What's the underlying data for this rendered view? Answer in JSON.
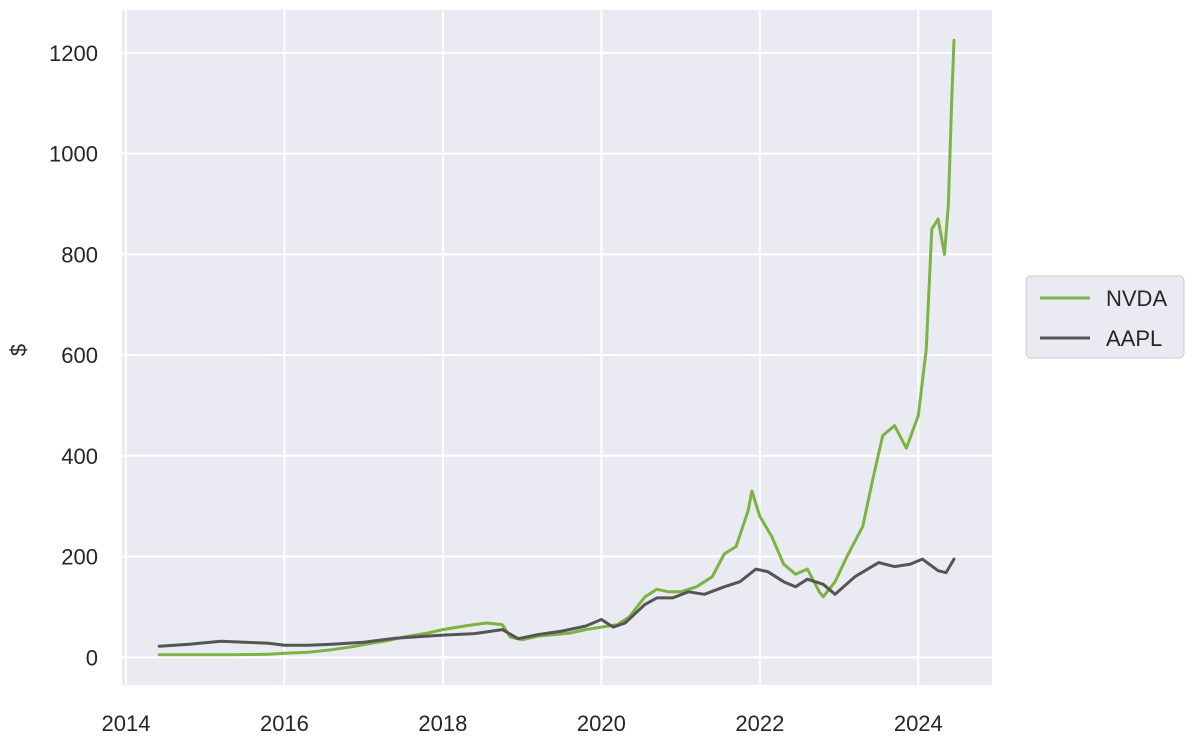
{
  "chart_data": {
    "type": "line",
    "ylabel": "$",
    "xlim": [
      2013.95,
      2024.93
    ],
    "ylim": [
      -55,
      1285
    ],
    "x_ticks": [
      "2014",
      "2016",
      "2018",
      "2020",
      "2022",
      "2024"
    ],
    "y_ticks": [
      "0",
      "200",
      "400",
      "600",
      "800",
      "1000",
      "1200"
    ],
    "grid": true,
    "legend_position": "right",
    "series": [
      {
        "name": "NVDA",
        "color": "#7cb342",
        "x": [
          2014.42,
          2014.8,
          2015.3,
          2015.8,
          2016.0,
          2016.3,
          2016.6,
          2016.9,
          2017.1,
          2017.3,
          2017.5,
          2017.8,
          2018.0,
          2018.3,
          2018.55,
          2018.75,
          2018.85,
          2019.0,
          2019.2,
          2019.4,
          2019.6,
          2019.8,
          2020.0,
          2020.2,
          2020.35,
          2020.55,
          2020.7,
          2020.85,
          2021.0,
          2021.2,
          2021.4,
          2021.55,
          2021.7,
          2021.85,
          2021.9,
          2022.0,
          2022.15,
          2022.3,
          2022.45,
          2022.6,
          2022.75,
          2022.8,
          2022.95,
          2023.1,
          2023.3,
          2023.42,
          2023.55,
          2023.7,
          2023.85,
          2024.0,
          2024.1,
          2024.17,
          2024.25,
          2024.33,
          2024.38,
          2024.42,
          2024.45
        ],
        "y": [
          5,
          5,
          5,
          6,
          8,
          10,
          15,
          22,
          28,
          33,
          40,
          48,
          55,
          63,
          68,
          65,
          40,
          35,
          42,
          45,
          48,
          55,
          60,
          65,
          80,
          120,
          135,
          130,
          130,
          140,
          160,
          205,
          220,
          290,
          330,
          280,
          240,
          185,
          165,
          175,
          130,
          120,
          150,
          200,
          260,
          350,
          440,
          460,
          415,
          480,
          610,
          850,
          870,
          800,
          900,
          1100,
          1225
        ]
      },
      {
        "name": "AAPL",
        "color": "#555555",
        "x": [
          2014.42,
          2014.8,
          2015.2,
          2015.5,
          2015.8,
          2016.0,
          2016.3,
          2016.6,
          2017.0,
          2017.4,
          2017.8,
          2018.0,
          2018.4,
          2018.75,
          2018.95,
          2019.2,
          2019.5,
          2019.8,
          2020.0,
          2020.15,
          2020.3,
          2020.55,
          2020.7,
          2020.9,
          2021.1,
          2021.3,
          2021.55,
          2021.75,
          2021.95,
          2022.1,
          2022.3,
          2022.45,
          2022.6,
          2022.8,
          2022.95,
          2023.2,
          2023.5,
          2023.7,
          2023.9,
          2024.05,
          2024.25,
          2024.35,
          2024.45
        ],
        "y": [
          22,
          26,
          32,
          30,
          28,
          24,
          24,
          26,
          30,
          38,
          42,
          44,
          47,
          55,
          37,
          45,
          52,
          62,
          75,
          60,
          68,
          105,
          118,
          118,
          130,
          125,
          140,
          150,
          175,
          170,
          150,
          140,
          155,
          145,
          125,
          160,
          188,
          180,
          185,
          195,
          172,
          168,
          195
        ]
      }
    ]
  }
}
